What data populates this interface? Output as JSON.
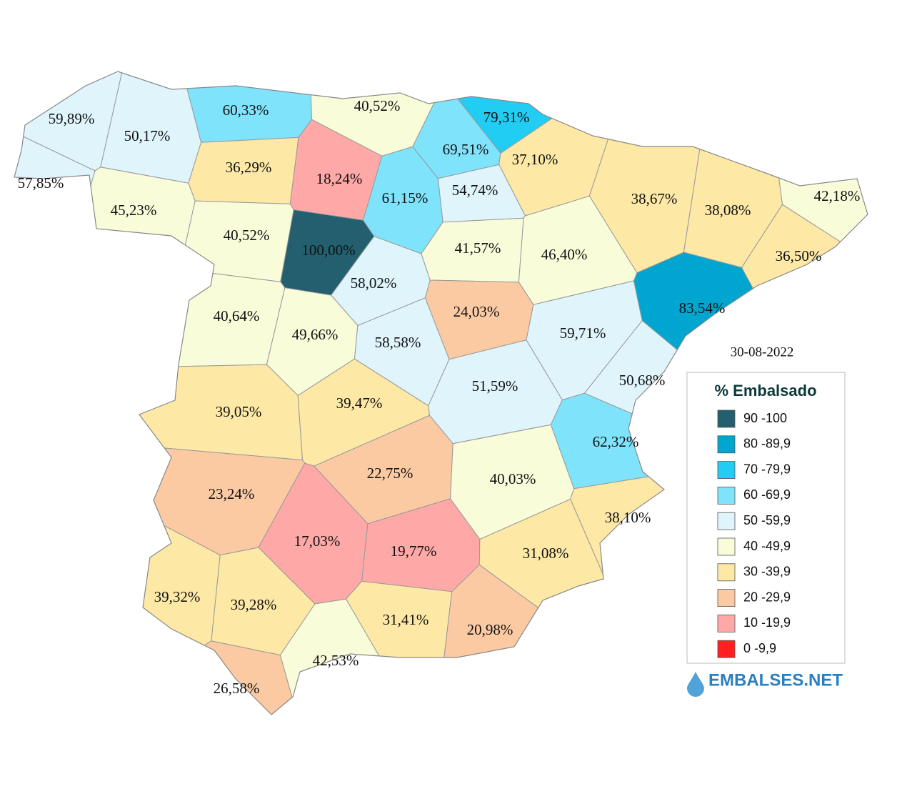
{
  "date": "30-08-2022",
  "legend": {
    "title": "% Embalsado",
    "items": [
      {
        "label": "90 -100",
        "color": "#235f6e"
      },
      {
        "label": "80 -89,9",
        "color": "#00a6cf"
      },
      {
        "label": "70 -79,9",
        "color": "#22cdf3"
      },
      {
        "label": "60 -69,9",
        "color": "#7fe3fb"
      },
      {
        "label": "50 -59,9",
        "color": "#dff4fb"
      },
      {
        "label": "40 -49,9",
        "color": "#f8fcd9"
      },
      {
        "label": "30 -39,9",
        "color": "#fde8a6"
      },
      {
        "label": "20 -29,9",
        "color": "#fbcaa3"
      },
      {
        "label": "10 -19,9",
        "color": "#ffa8a8"
      },
      {
        "label": "0 -9,9",
        "color": "#ff2020"
      }
    ]
  },
  "brand": "EMBALSES.NET",
  "regions": [
    {
      "label": "59,89%",
      "color": "#dff4fb"
    },
    {
      "label": "50,17%",
      "color": "#dff4fb"
    },
    {
      "label": "57,85%",
      "color": "#dff4fb"
    },
    {
      "label": "60,33%",
      "color": "#7fe3fb"
    },
    {
      "label": "40,52%",
      "color": "#f8fcd9"
    },
    {
      "label": "79,31%",
      "color": "#22cdf3"
    },
    {
      "label": "69,51%",
      "color": "#7fe3fb"
    },
    {
      "label": "37,10%",
      "color": "#fde8a6"
    },
    {
      "label": "36,29%",
      "color": "#fde8a6"
    },
    {
      "label": "18,24%",
      "color": "#ffa8a8"
    },
    {
      "label": "61,15%",
      "color": "#7fe3fb"
    },
    {
      "label": "54,74%",
      "color": "#dff4fb"
    },
    {
      "label": "45,23%",
      "color": "#f8fcd9"
    },
    {
      "label": "38,67%",
      "color": "#fde8a6"
    },
    {
      "label": "38,08%",
      "color": "#fde8a6"
    },
    {
      "label": "42,18%",
      "color": "#f8fcd9"
    },
    {
      "label": "40,52%",
      "color": "#f8fcd9"
    },
    {
      "label": "100,00%",
      "color": "#235f6e"
    },
    {
      "label": "41,57%",
      "color": "#f8fcd9"
    },
    {
      "label": "46,40%",
      "color": "#f8fcd9"
    },
    {
      "label": "36,50%",
      "color": "#fde8a6"
    },
    {
      "label": "58,02%",
      "color": "#dff4fb"
    },
    {
      "label": "83,54%",
      "color": "#00a6cf"
    },
    {
      "label": "40,64%",
      "color": "#f8fcd9"
    },
    {
      "label": "24,03%",
      "color": "#fbcaa3"
    },
    {
      "label": "49,66%",
      "color": "#f8fcd9"
    },
    {
      "label": "59,71%",
      "color": "#dff4fb"
    },
    {
      "label": "58,58%",
      "color": "#dff4fb"
    },
    {
      "label": "51,59%",
      "color": "#dff4fb"
    },
    {
      "label": "50,68%",
      "color": "#dff4fb"
    },
    {
      "label": "39,05%",
      "color": "#fde8a6"
    },
    {
      "label": "39,47%",
      "color": "#fde8a6"
    },
    {
      "label": "62,32%",
      "color": "#7fe3fb"
    },
    {
      "label": "22,75%",
      "color": "#fbcaa3"
    },
    {
      "label": "23,24%",
      "color": "#fbcaa3"
    },
    {
      "label": "40,03%",
      "color": "#f8fcd9"
    },
    {
      "label": "38,10%",
      "color": "#fde8a6"
    },
    {
      "label": "17,03%",
      "color": "#ffa8a8"
    },
    {
      "label": "19,77%",
      "color": "#ffa8a8"
    },
    {
      "label": "31,08%",
      "color": "#fde8a6"
    },
    {
      "label": "39,32%",
      "color": "#fde8a6"
    },
    {
      "label": "39,28%",
      "color": "#fde8a6"
    },
    {
      "label": "31,41%",
      "color": "#fde8a6"
    },
    {
      "label": "20,98%",
      "color": "#fbcaa3"
    },
    {
      "label": "42,53%",
      "color": "#f8fcd9"
    },
    {
      "label": "26,58%",
      "color": "#fbcaa3"
    }
  ]
}
